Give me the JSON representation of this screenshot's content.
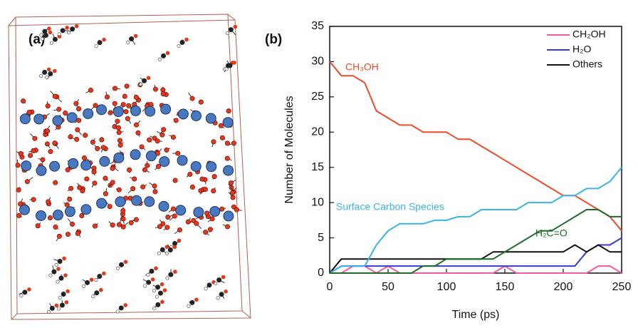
{
  "panel_a": {
    "label": "(a)"
  },
  "chart_data": {
    "type": "line",
    "panel_label": "(b)",
    "x_label": "Time (ps)",
    "y_label": "Number of Molecules",
    "x": [
      0,
      10,
      20,
      30,
      40,
      50,
      60,
      70,
      80,
      90,
      100,
      110,
      120,
      130,
      140,
      150,
      160,
      170,
      180,
      190,
      200,
      210,
      220,
      230,
      240,
      250
    ],
    "xlim": [
      0,
      250
    ],
    "ylim": [
      0,
      35
    ],
    "xticks": [
      0,
      50,
      100,
      150,
      200,
      250
    ],
    "yticks": [
      0,
      5,
      10,
      15,
      20,
      25,
      30,
      35
    ],
    "legend_position": "upper right",
    "series": [
      {
        "name": "CH₂OH",
        "color": "#f05aa0",
        "in_legend": true,
        "values": [
          0,
          0,
          1,
          1,
          0,
          1,
          0,
          0,
          0,
          0,
          0,
          0,
          0,
          0,
          0,
          1,
          0,
          0,
          0,
          0,
          0,
          0,
          0,
          1,
          1,
          0
        ]
      },
      {
        "name": "H₂O",
        "color": "#3a3ad0",
        "in_legend": true,
        "values": [
          0,
          1,
          1,
          1,
          1,
          1,
          1,
          1,
          1,
          1,
          1,
          1,
          1,
          1,
          1,
          1,
          1,
          1,
          1,
          1,
          1,
          1,
          3,
          4,
          4,
          5
        ]
      },
      {
        "name": "Others",
        "color": "#111111",
        "in_legend": true,
        "values": [
          0,
          2,
          2,
          2,
          2,
          2,
          2,
          2,
          2,
          2,
          2,
          2,
          2,
          2,
          3,
          3,
          3,
          3,
          3,
          3,
          3,
          4,
          3,
          4,
          3,
          3
        ]
      },
      {
        "name": "CH₃OH",
        "color": "#f04a2a",
        "in_legend": false,
        "values": [
          30,
          28,
          28,
          27,
          23,
          22,
          21,
          21,
          20,
          20,
          20,
          19,
          19,
          18,
          17,
          16,
          15,
          14,
          13,
          12,
          11,
          11,
          10,
          9,
          8,
          6
        ]
      },
      {
        "name": "Surface Carbon Species",
        "color": "#39b4e8",
        "in_legend": false,
        "values": [
          0,
          1,
          1,
          1,
          4,
          6,
          7,
          7,
          7,
          7.5,
          7.5,
          8,
          8,
          9,
          9,
          9,
          9,
          10,
          10,
          10,
          11,
          11,
          12,
          12,
          13,
          15
        ]
      },
      {
        "name": "H₂C=O",
        "color": "#1f6b2a",
        "in_legend": false,
        "values": [
          0,
          0,
          0,
          0,
          0,
          0,
          0,
          0,
          1,
          1,
          2,
          2,
          2,
          2,
          2,
          3,
          4,
          5,
          6,
          6,
          7,
          8,
          9,
          9,
          8,
          8
        ]
      }
    ]
  }
}
